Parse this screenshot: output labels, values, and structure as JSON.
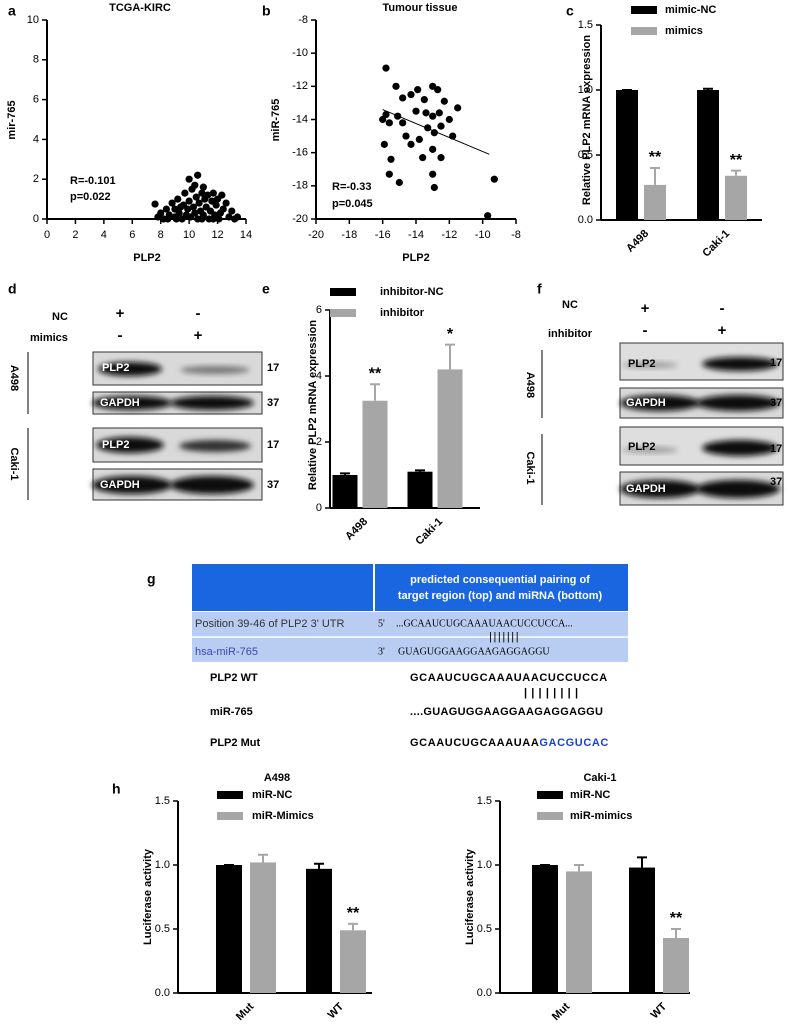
{
  "panel_labels": [
    "a",
    "b",
    "c",
    "d",
    "e",
    "f",
    "g",
    "h"
  ],
  "chart_data": [
    {
      "type": "scatter",
      "title": "TCGA-KIRC",
      "x_label": "PLP2",
      "y_label": "mir-765",
      "annotations": [
        "R=-0.101",
        "p=0.022"
      ],
      "color": "#000000",
      "x": [
        7.6,
        7.8,
        8.0,
        8.2,
        8.4,
        8.6,
        8.8,
        9.0,
        9.0,
        9.2,
        9.3,
        9.5,
        9.6,
        9.7,
        9.8,
        9.9,
        10.0,
        10.0,
        10.1,
        10.2,
        10.3,
        10.4,
        10.5,
        10.6,
        10.6,
        10.7,
        10.8,
        10.9,
        11.0,
        11.1,
        11.2,
        11.3,
        11.4,
        11.5,
        11.6,
        11.7,
        11.8,
        11.9,
        12.0,
        12.2,
        12.3,
        12.4,
        12.6,
        12.8,
        13.0,
        13.2,
        13.4,
        8.5,
        9.4,
        10.4,
        11.0,
        12.1,
        9.1,
        10.9,
        11.7
      ],
      "values": [
        0.75,
        0.1,
        0.3,
        0,
        0.5,
        0.2,
        0.8,
        0.1,
        0.5,
        1.0,
        0.3,
        0,
        0.7,
        1.3,
        0.2,
        0.5,
        2.0,
        0.9,
        0.1,
        1.5,
        0.6,
        0.3,
        1.1,
        2.2,
        0,
        0.8,
        0.4,
        1.3,
        0.2,
        1.0,
        0.6,
        1.2,
        0,
        0.4,
        0.9,
        1.3,
        0.2,
        0.7,
        1.0,
        0.3,
        1.2,
        0.5,
        0.8,
        0.1,
        0.4,
        0,
        0.1,
        0,
        0.6,
        1.7,
        1.6,
        0,
        0,
        0,
        0
      ],
      "xlim": [
        0,
        14
      ],
      "xticks": [
        0,
        2,
        4,
        6,
        8,
        10,
        12,
        14
      ],
      "ylim": [
        0,
        10
      ],
      "yticks": [
        0,
        2,
        4,
        6,
        8,
        10
      ]
    },
    {
      "type": "scatter",
      "title": "Tumour tissue",
      "x_label": "PLP2",
      "y_label": "miR-765",
      "annotations": [
        "R=-0.33",
        "p=0.045"
      ],
      "color": "#000000",
      "x": [
        -15.8,
        -15.2,
        -14.8,
        -14.3,
        -13.9,
        -13.0,
        -12.7,
        -13.5,
        -12.3,
        -11.5,
        -15.8,
        -15.6,
        -15.1,
        -14.0,
        -13.4,
        -13.0,
        -12.6,
        -12.0,
        -14.6,
        -13.3,
        -12.9,
        -12.5,
        -11.8,
        -15.9,
        -14.3,
        -13.8,
        -13.0,
        -15.5,
        -13.6,
        -12.5,
        -15.6,
        -15.0,
        -13.0,
        -12.9,
        -9.3,
        -9.7,
        -16.0,
        -14.8
      ],
      "values": [
        -10.9,
        -12.0,
        -12.7,
        -12.5,
        -12.2,
        -12.0,
        -12.2,
        -12.8,
        -12.9,
        -13.3,
        -13.7,
        -14.2,
        -13.8,
        -13.5,
        -13.6,
        -13.8,
        -13.6,
        -14.0,
        -15.0,
        -14.5,
        -14.8,
        -14.4,
        -15.0,
        -15.5,
        -15.5,
        -15.2,
        -15.8,
        -16.4,
        -16.3,
        -16.3,
        -17.3,
        -17.8,
        -17.3,
        -18.1,
        -17.6,
        -19.8,
        -14.0,
        -14.2
      ],
      "fit_line": {
        "x": [
          -16,
          -9.6
        ],
        "values": [
          -13.4,
          -16.1
        ]
      },
      "xlim": [
        -20,
        -8
      ],
      "xticks": [
        -20,
        -18,
        -16,
        -14,
        -12,
        -10,
        -8
      ],
      "ylim": [
        -20,
        -8
      ],
      "yticks": [
        -20,
        -18,
        -16,
        -14,
        -12,
        -10,
        -8
      ]
    },
    {
      "type": "bar",
      "y_label": "Relative PLP2 mRNA expression",
      "categories": [
        "A498",
        "Caki-1"
      ],
      "series": [
        {
          "name": "mimic-NC",
          "color": "#000000",
          "values": [
            1.0,
            1.0
          ],
          "errors": [
            0,
            0.01
          ],
          "significance": [
            null,
            null
          ]
        },
        {
          "name": "mimics",
          "color": "#a6a6a6",
          "values": [
            0.27,
            0.34
          ],
          "errors": [
            0.13,
            0.04
          ],
          "significance": [
            "**",
            "**"
          ]
        }
      ],
      "ylim": [
        0,
        1.5
      ],
      "yticks": [
        {
          "value": 0,
          "label": "0.0"
        },
        0.5,
        {
          "value": 1,
          "label": "1.0"
        },
        1.5
      ]
    },
    {
      "type": "bar",
      "y_label": "Relative PLP2 mRNA expression",
      "categories": [
        "A498",
        "Caki-1"
      ],
      "series": [
        {
          "name": "inhibitor-NC",
          "color": "#000000",
          "values": [
            1.0,
            1.1
          ],
          "errors": [
            0.05,
            0.04
          ],
          "significance": [
            null,
            null
          ]
        },
        {
          "name": "inhibitor",
          "color": "#a6a6a6",
          "values": [
            3.25,
            4.2
          ],
          "errors": [
            0.5,
            0.75
          ],
          "significance": [
            "**",
            "*"
          ]
        }
      ],
      "ylim": [
        0,
        6
      ],
      "yticks": [
        0,
        2,
        4,
        6
      ]
    },
    {
      "type": "bar",
      "title": "A498",
      "y_label": "Luciferase activity",
      "categories": [
        "Mut",
        "WT"
      ],
      "series": [
        {
          "name": "miR-NC",
          "color": "#000000",
          "values": [
            1.0,
            0.97
          ],
          "errors": [
            0,
            0.04
          ],
          "significance": [
            null,
            null
          ]
        },
        {
          "name": "miR-Mimics",
          "color": "#a6a6a6",
          "values": [
            1.02,
            0.49
          ],
          "errors": [
            0.06,
            0.05
          ],
          "significance": [
            null,
            "**"
          ]
        }
      ],
      "ylim": [
        0,
        1.5
      ],
      "yticks": [
        {
          "value": 0,
          "label": "0.0"
        },
        0.5,
        {
          "value": 1,
          "label": "1.0"
        },
        1.5
      ]
    },
    {
      "type": "bar",
      "title": "Caki-1",
      "y_label": "Luciferase activity",
      "categories": [
        "Mut",
        "WT"
      ],
      "series": [
        {
          "name": "miR-NC",
          "color": "#000000",
          "values": [
            1.0,
            0.98
          ],
          "errors": [
            0,
            0.08
          ],
          "significance": [
            null,
            null
          ]
        },
        {
          "name": "miR-mimics",
          "color": "#a6a6a6",
          "values": [
            0.95,
            0.43
          ],
          "errors": [
            0.05,
            0.07
          ],
          "significance": [
            null,
            "**"
          ]
        }
      ],
      "ylim": [
        0,
        1.5
      ],
      "yticks": [
        {
          "value": 0,
          "label": "0.0"
        },
        0.5,
        {
          "value": 1,
          "label": "1.0"
        },
        1.5
      ]
    }
  ],
  "blots": [
    {
      "rows": [
        {
          "label": "NC",
          "marks": [
            "+",
            "-"
          ]
        },
        {
          "label": "mimics",
          "marks": [
            "-",
            "+"
          ]
        }
      ],
      "cell_lines": [
        {
          "name": "A498",
          "bands": [
            {
              "protein": "PLP2",
              "kda": 17
            },
            {
              "protein": "GAPDH",
              "kda": 37
            }
          ]
        },
        {
          "name": "Caki-1",
          "bands": [
            {
              "protein": "PLP2",
              "kda": 17
            },
            {
              "protein": "GAPDH",
              "kda": 37
            }
          ]
        }
      ]
    },
    {
      "rows": [
        {
          "label": "NC",
          "marks": [
            "+",
            "-"
          ]
        },
        {
          "label": "inhibitor",
          "marks": [
            "-",
            "+"
          ]
        }
      ],
      "cell_lines": [
        {
          "name": "A498",
          "bands": [
            {
              "protein": "PLP2",
              "kda": 17
            },
            {
              "protein": "GAPDH",
              "kda": 37
            }
          ]
        },
        {
          "name": "Caki-1",
          "bands": [
            {
              "protein": "PLP2",
              "kda": 17
            },
            {
              "protein": "GAPDH",
              "kda": 37
            }
          ]
        }
      ]
    }
  ],
  "sequence_alignment": {
    "header": [
      "predicted consequential pairing of",
      "target region (top) and miRNA (bottom)"
    ],
    "rows": [
      {
        "label": "Position 39-46 of PLP2 3' UTR",
        "end": "5'",
        "sequence": "...GCAAUCUGCAAAUAACUCCUCCA..."
      },
      {
        "label": "hsa-miR-765",
        "end": "3'",
        "sequence": "GUAGUGGAAGGAAGAGGAGGU"
      }
    ],
    "lines": [
      {
        "label": "PLP2 WT",
        "sequence": "GCAAUCUGCAAAUAACUCCUCCA"
      },
      {
        "label": "miR-765",
        "sequence": "....GUAGUGGAAGGAAGAGGAGGU"
      },
      {
        "label": "PLP2 Mut",
        "sequence": "GCAAUCUGCAAAUAA",
        "mutation": "GACGUCAC"
      }
    ]
  }
}
